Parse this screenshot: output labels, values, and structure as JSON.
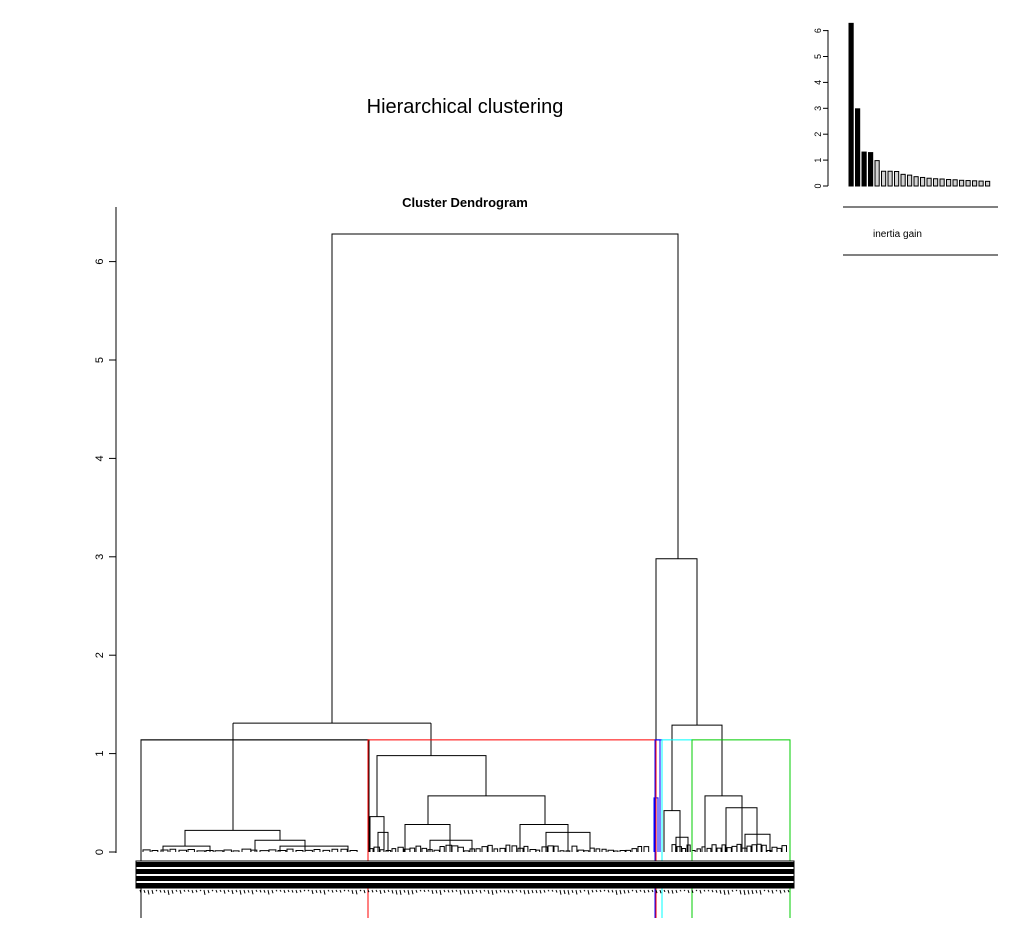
{
  "figure": {
    "title": "Hierarchical clustering"
  },
  "chart_data": [
    {
      "type": "dendrogram",
      "title": "Cluster Dendrogram",
      "ylabel": "",
      "ylim": [
        0,
        6.5
      ],
      "yticks": [
        0,
        1,
        2,
        3,
        4,
        5,
        6
      ],
      "cut_height": 1.14,
      "clusters": [
        {
          "id": 1,
          "color": "#000000"
        },
        {
          "id": 2,
          "color": "#ff0000"
        },
        {
          "id": 3,
          "color": "#0000ff"
        },
        {
          "id": 4,
          "color": "#00ffff"
        },
        {
          "id": 5,
          "color": "#00cc00"
        }
      ],
      "merge_heights": [
        6.28,
        2.98,
        1.31,
        1.29,
        1.14,
        0.98,
        0.57,
        0.57,
        0.45,
        0.42,
        0.36,
        0.28,
        0.22
      ]
    },
    {
      "type": "bar",
      "title": "",
      "xlabel": "inertia gain",
      "ylim": [
        0,
        6.5
      ],
      "yticks": [
        0,
        1,
        2,
        3,
        4,
        5,
        6
      ],
      "values": [
        6.28,
        2.98,
        1.31,
        1.29,
        0.98,
        0.57,
        0.57,
        0.56,
        0.45,
        0.42,
        0.36,
        0.33,
        0.3,
        0.28,
        0.27,
        0.25,
        0.24,
        0.22,
        0.21,
        0.2,
        0.19,
        0.18
      ],
      "highlighted_count": 4
    }
  ]
}
